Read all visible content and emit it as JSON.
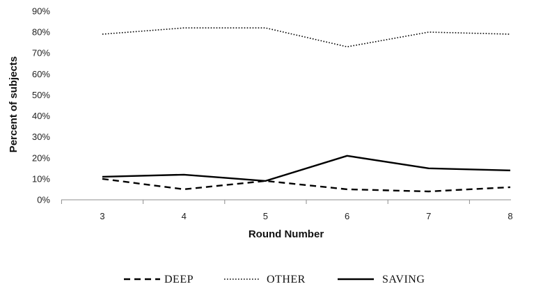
{
  "chart_data": {
    "type": "line",
    "xlabel": "Round Number",
    "ylabel": "Percent of subjects",
    "categories": [
      "3",
      "4",
      "5",
      "6",
      "7",
      "8"
    ],
    "y_ticks": [
      "0%",
      "10%",
      "20%",
      "30%",
      "40%",
      "50%",
      "60%",
      "70%",
      "80%",
      "90%"
    ],
    "ylim": [
      0,
      90
    ],
    "grid": false,
    "legend_position": "bottom",
    "series": [
      {
        "name": "DEEP",
        "style": "dashed",
        "color": "#000000",
        "values": [
          10,
          5,
          9,
          5,
          4,
          6
        ]
      },
      {
        "name": "OTHER",
        "style": "dotted",
        "color": "#000000",
        "values": [
          79,
          82,
          82,
          73,
          80,
          79
        ]
      },
      {
        "name": "SAVING",
        "style": "solid",
        "color": "#000000",
        "values": [
          11,
          12,
          9,
          21,
          15,
          14
        ]
      }
    ]
  }
}
